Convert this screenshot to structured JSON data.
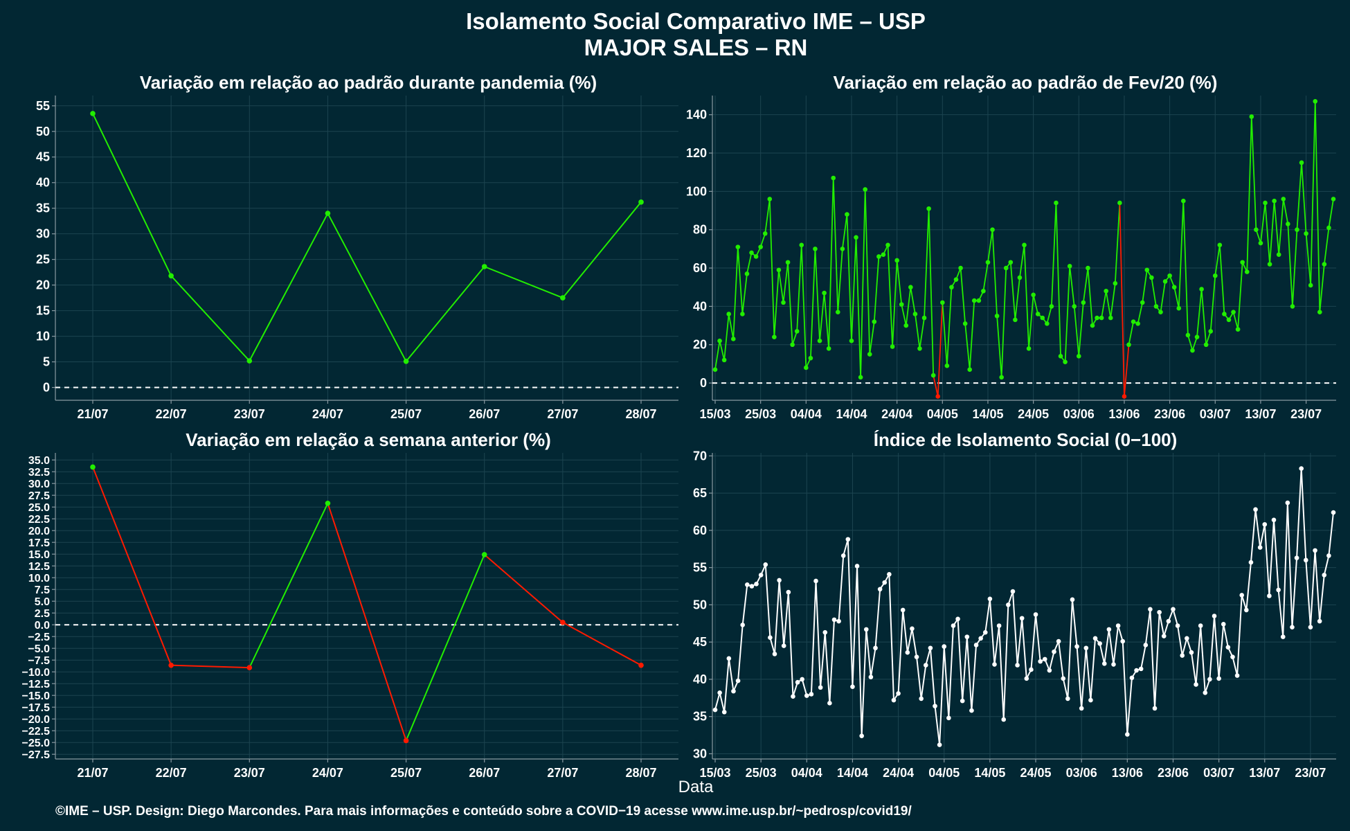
{
  "header": {
    "title_line1": "Isolamento Social Comparativo IME – USP",
    "title_line2": "MAJOR SALES – RN"
  },
  "xlabel": "Data",
  "footer": "©IME – USP. Design: Diego Marcondes. Para mais informações e conteúdo sobre a COVID−19 acesse www.ime.usp.br/~pedrosp/covid19/",
  "colors": {
    "background": "#022733",
    "positive": "#22ee00",
    "negative": "#ff1a00",
    "index": "#ffffff"
  },
  "chart_data": [
    {
      "id": "pandemia",
      "type": "line",
      "title": "Variação em relação ao padrão durante pandemia (%)",
      "categories": [
        "21/07",
        "22/07",
        "23/07",
        "24/07",
        "25/07",
        "26/07",
        "27/07",
        "28/07"
      ],
      "values": [
        53.5,
        21.8,
        5.2,
        34.0,
        5.1,
        23.6,
        17.5,
        36.2
      ],
      "ylim": [
        -2.5,
        57
      ],
      "yticks": [
        "0",
        "5",
        "10",
        "15",
        "20",
        "25",
        "30",
        "35",
        "40",
        "45",
        "50",
        "55"
      ],
      "zero_line": true,
      "grid": true
    },
    {
      "id": "fev20",
      "type": "line",
      "title": "Variação em relação ao padrão de Fev/20 (%)",
      "x_start": "15/03",
      "xticks": [
        "15/03",
        "25/03",
        "04/04",
        "14/04",
        "24/04",
        "04/05",
        "14/05",
        "24/05",
        "03/06",
        "13/06",
        "23/06",
        "03/07",
        "13/07",
        "23/07"
      ],
      "values": [
        7,
        22,
        12,
        36,
        23,
        71,
        36,
        57,
        68,
        66,
        71,
        78,
        96,
        24,
        59,
        42,
        63,
        20,
        27,
        72,
        8,
        13,
        70,
        22,
        47,
        18,
        107,
        37,
        70,
        88,
        22,
        76,
        3,
        101,
        15,
        32,
        66,
        67,
        72,
        19,
        64,
        41,
        30,
        50,
        36,
        18,
        34,
        91,
        4,
        -7,
        42,
        9,
        50,
        54,
        60,
        31,
        7,
        43,
        43,
        48,
        63,
        80,
        35,
        3,
        60,
        63,
        33,
        55,
        72,
        18,
        46,
        36,
        34,
        31,
        40,
        94,
        14,
        11,
        61,
        40,
        14,
        42,
        60,
        30,
        34,
        34,
        48,
        34,
        52,
        94,
        -7,
        20,
        32,
        31,
        42,
        59,
        55,
        40,
        37,
        53,
        56,
        50,
        39,
        95,
        25,
        17,
        24,
        49,
        20,
        27,
        56,
        72,
        36,
        33,
        37,
        28,
        63,
        58,
        139,
        80,
        73,
        94,
        62,
        95,
        67,
        96,
        83,
        40,
        80,
        115,
        78,
        51,
        147,
        37,
        62,
        81,
        96
      ],
      "ylim": [
        -9,
        150
      ],
      "yticks": [
        "0",
        "20",
        "40",
        "60",
        "80",
        "100",
        "120",
        "140"
      ],
      "zero_line": true,
      "grid": true
    },
    {
      "id": "semana",
      "type": "line",
      "title": "Variação em relação a semana anterior (%)",
      "categories": [
        "21/07",
        "22/07",
        "23/07",
        "24/07",
        "25/07",
        "26/07",
        "27/07",
        "28/07"
      ],
      "values": [
        33.5,
        -8.6,
        -9.1,
        25.8,
        -24.6,
        14.9,
        0.5,
        -8.6
      ],
      "ylim": [
        -28.5,
        36.5
      ],
      "yticks": [
        "-27.5",
        "-25.0",
        "-22.5",
        "-20.0",
        "-17.5",
        "-15.0",
        "-12.5",
        "-10.0",
        "-7.5",
        "-5.0",
        "-2.5",
        "0.0",
        "2.5",
        "5.0",
        "7.5",
        "10.0",
        "12.5",
        "15.0",
        "17.5",
        "20.0",
        "22.5",
        "25.0",
        "27.5",
        "30.0",
        "32.5",
        "35.0"
      ],
      "zero_line": true,
      "grid": true
    },
    {
      "id": "indice",
      "type": "line",
      "title": "Índice de Isolamento Social (0−100)",
      "x_start": "15/03",
      "xticks": [
        "15/03",
        "25/03",
        "04/04",
        "14/04",
        "24/04",
        "04/05",
        "14/05",
        "24/05",
        "03/06",
        "13/06",
        "23/06",
        "03/07",
        "13/07",
        "23/07"
      ],
      "values": [
        35.9,
        38.2,
        35.6,
        42.8,
        38.4,
        39.8,
        47.3,
        52.7,
        52.5,
        52.8,
        54,
        55.4,
        45.6,
        43.4,
        53.3,
        44.5,
        51.7,
        37.7,
        39.6,
        40,
        37.8,
        38,
        53.2,
        38.9,
        46.3,
        36.8,
        48,
        47.8,
        56.6,
        58.8,
        39,
        55.2,
        32.4,
        46.7,
        40.3,
        44.2,
        52.1,
        53,
        54.1,
        37.2,
        38.1,
        49.3,
        43.6,
        46.8,
        43,
        37.4,
        41.9,
        44.2,
        36.4,
        31.2,
        44.4,
        34.8,
        47.2,
        48.1,
        37.1,
        45.7,
        35.8,
        44.6,
        45.5,
        46.3,
        50.8,
        42,
        47.2,
        34.6,
        50,
        51.8,
        41.9,
        48.2,
        40.1,
        41.3,
        48.7,
        42.4,
        42.7,
        41.2,
        43.7,
        45.1,
        40.1,
        37.4,
        50.7,
        44.4,
        36.1,
        44.2,
        37.2,
        45.5,
        44.8,
        42.1,
        46.7,
        42,
        47.2,
        45.1,
        32.6,
        40.2,
        41.2,
        41.4,
        44.6,
        49.4,
        36.1,
        49,
        45.8,
        47.8,
        49.4,
        47.2,
        43.2,
        45.5,
        43.6,
        39.3,
        47.2,
        38.2,
        40,
        48.5,
        40.1,
        47.4,
        44.3,
        43,
        40.5,
        51.3,
        49.3,
        55.7,
        62.8,
        57.7,
        60.8,
        51.2,
        61.4,
        52,
        45.7,
        63.7,
        47,
        56.3,
        68.3,
        56,
        47,
        57.3,
        47.8,
        54,
        56.6,
        62.4
      ],
      "ylim": [
        29.3,
        70.4
      ],
      "yticks": [
        "30",
        "35",
        "40",
        "45",
        "50",
        "55",
        "60",
        "65",
        "70"
      ],
      "zero_line": false,
      "grid": true
    }
  ]
}
